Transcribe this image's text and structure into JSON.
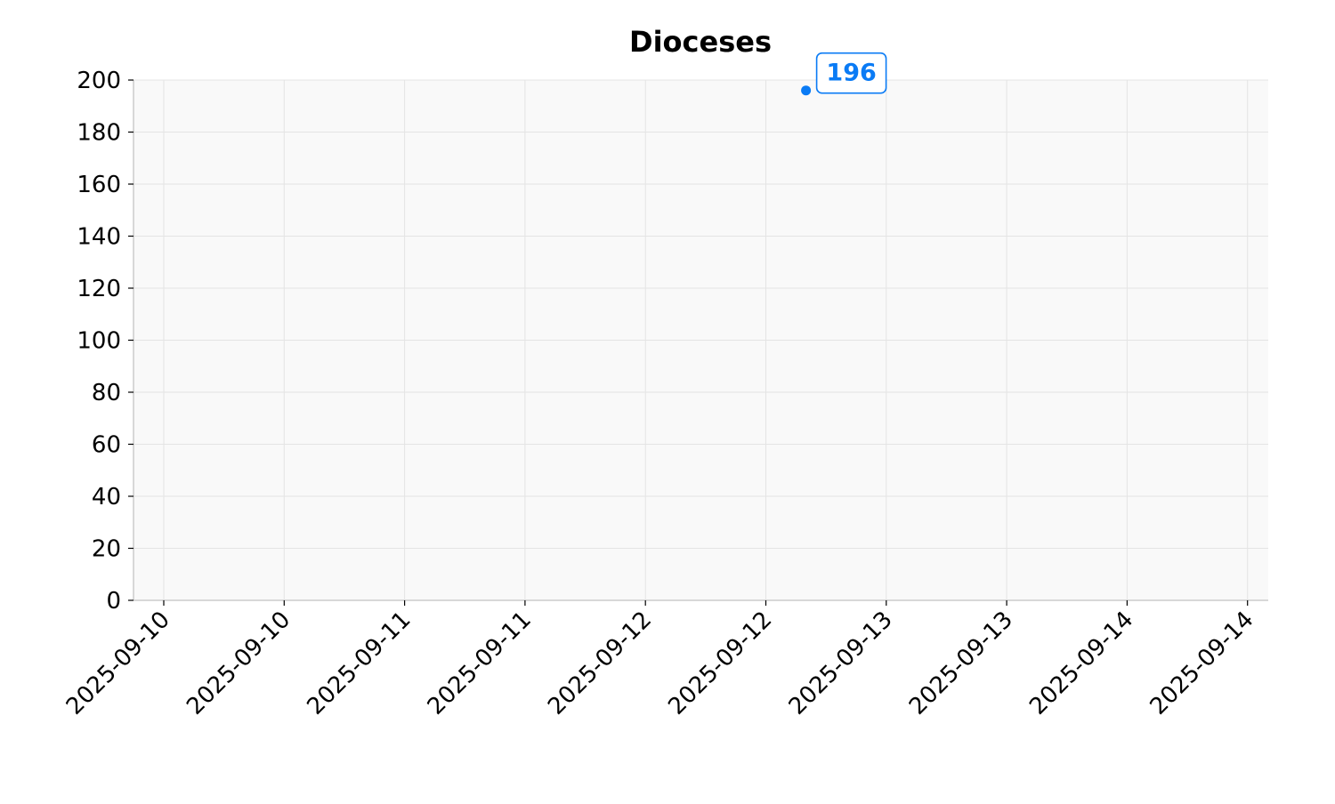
{
  "chart_data": {
    "type": "scatter",
    "title": "Dioceses",
    "xlabel": "",
    "ylabel": "",
    "x_tick_labels": [
      "2025-09-10",
      "2025-09-10",
      "2025-09-11",
      "2025-09-11",
      "2025-09-12",
      "2025-09-12",
      "2025-09-13",
      "2025-09-13",
      "2025-09-14",
      "2025-09-14"
    ],
    "y_ticks": [
      0,
      20,
      40,
      60,
      80,
      100,
      120,
      140,
      160,
      180,
      200
    ],
    "ylim": [
      0,
      200
    ],
    "grid": true,
    "series": [
      {
        "color": "#0a7bf5",
        "points": [
          {
            "x": "2025-09-12",
            "y": 196,
            "label": "196"
          }
        ]
      }
    ]
  }
}
